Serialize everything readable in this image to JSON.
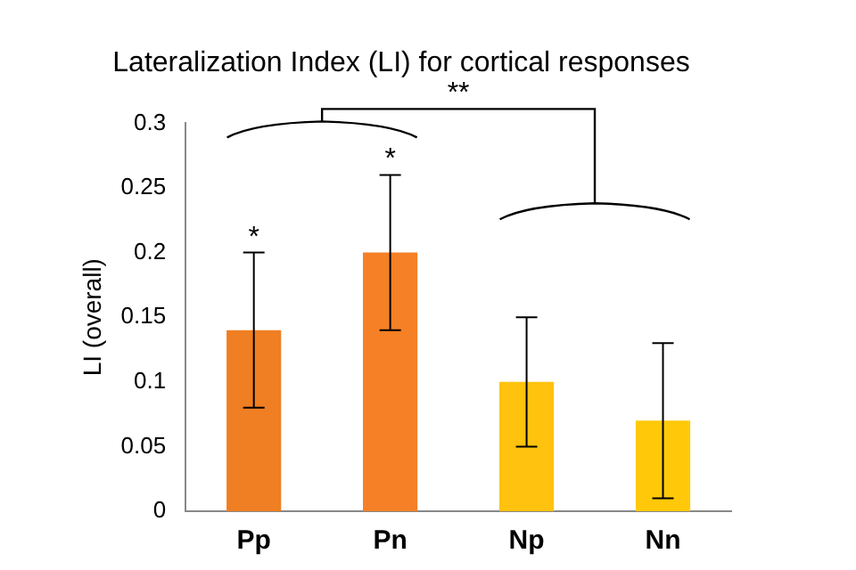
{
  "chart_data": {
    "type": "bar",
    "title": "Lateralization Index (LI) for cortical responses",
    "ylabel": "LI (overall)",
    "categories": [
      "Pp",
      "Pn",
      "Np",
      "Nn"
    ],
    "values": [
      0.14,
      0.2,
      0.1,
      0.07
    ],
    "colors": [
      "#f07e22",
      "#f58025",
      "#ffc20e",
      "#ffc90a"
    ],
    "errors": [
      [
        0.08,
        0.2
      ],
      [
        0.14,
        0.26
      ],
      [
        0.05,
        0.15
      ],
      [
        0.01,
        0.13
      ]
    ],
    "ylim": [
      0,
      0.3
    ],
    "yticks": [
      0,
      0.05,
      0.1,
      0.15,
      0.2,
      0.25,
      0.3
    ],
    "grid": false,
    "legend": false,
    "annotations": [
      {
        "text": "*",
        "x": "Pp",
        "y": 0.2
      },
      {
        "text": "*",
        "x": "Pn",
        "y": 0.26
      },
      "**"
    ]
  }
}
